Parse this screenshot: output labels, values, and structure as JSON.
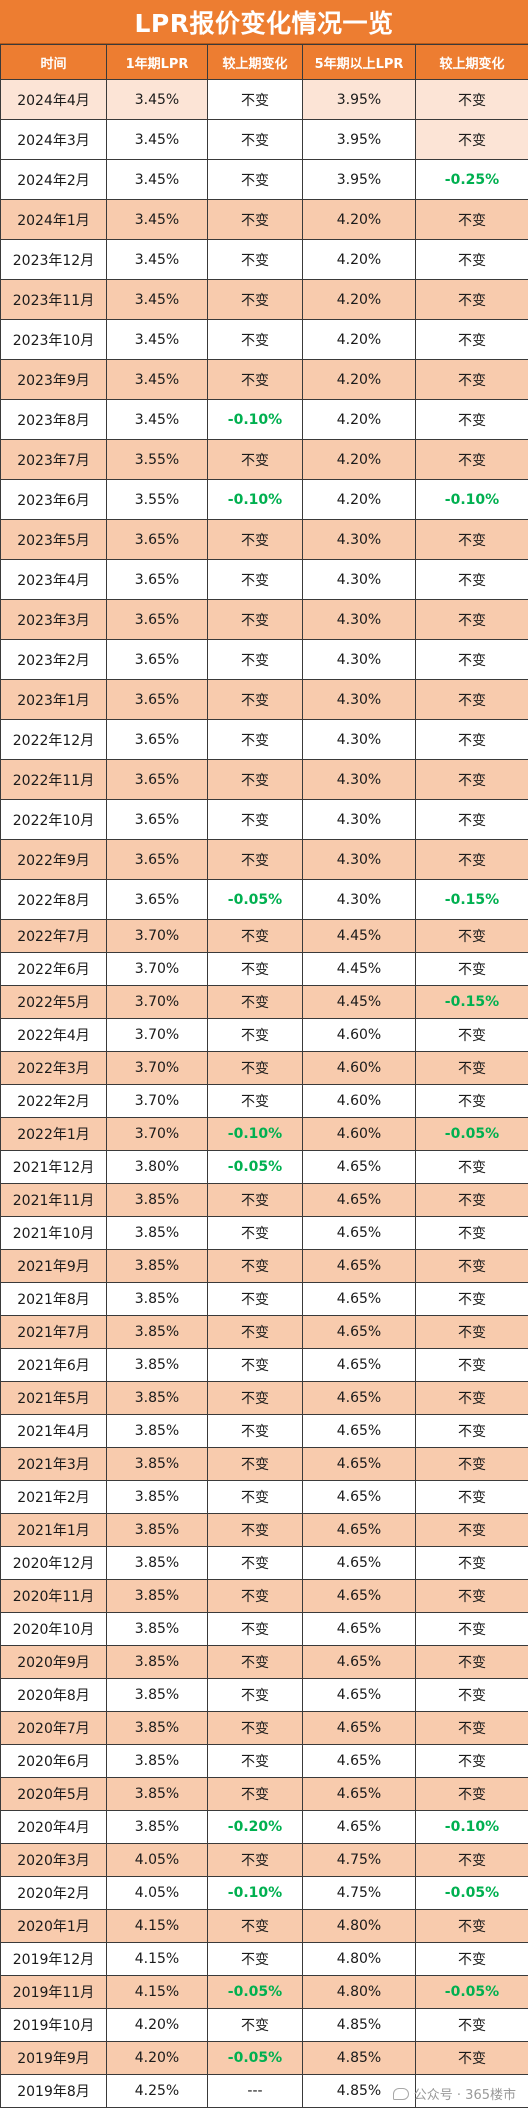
{
  "title": "LPR报价变化情况一览",
  "columns": [
    "时间",
    "1年期LPR",
    "较上期变化",
    "5年期以上LPR",
    "较上期变化"
  ],
  "rows": [
    {
      "date": "2024年4月",
      "lpr1": "3.45%",
      "chg1": "不变",
      "lpr5": "3.95%",
      "chg5": "不变"
    },
    {
      "date": "2024年3月",
      "lpr1": "3.45%",
      "chg1": "不变",
      "lpr5": "3.95%",
      "chg5": "不变"
    },
    {
      "date": "2024年2月",
      "lpr1": "3.45%",
      "chg1": "不变",
      "lpr5": "3.95%",
      "chg5": "-0.25%"
    },
    {
      "date": "2024年1月",
      "lpr1": "3.45%",
      "chg1": "不变",
      "lpr5": "4.20%",
      "chg5": "不变"
    },
    {
      "date": "2023年12月",
      "lpr1": "3.45%",
      "chg1": "不变",
      "lpr5": "4.20%",
      "chg5": "不变"
    },
    {
      "date": "2023年11月",
      "lpr1": "3.45%",
      "chg1": "不变",
      "lpr5": "4.20%",
      "chg5": "不变"
    },
    {
      "date": "2023年10月",
      "lpr1": "3.45%",
      "chg1": "不变",
      "lpr5": "4.20%",
      "chg5": "不变"
    },
    {
      "date": "2023年9月",
      "lpr1": "3.45%",
      "chg1": "不变",
      "lpr5": "4.20%",
      "chg5": "不变"
    },
    {
      "date": "2023年8月",
      "lpr1": "3.45%",
      "chg1": "-0.10%",
      "lpr5": "4.20%",
      "chg5": "不变"
    },
    {
      "date": "2023年7月",
      "lpr1": "3.55%",
      "chg1": "不变",
      "lpr5": "4.20%",
      "chg5": "不变"
    },
    {
      "date": "2023年6月",
      "lpr1": "3.55%",
      "chg1": "-0.10%",
      "lpr5": "4.20%",
      "chg5": "-0.10%"
    },
    {
      "date": "2023年5月",
      "lpr1": "3.65%",
      "chg1": "不变",
      "lpr5": "4.30%",
      "chg5": "不变"
    },
    {
      "date": "2023年4月",
      "lpr1": "3.65%",
      "chg1": "不变",
      "lpr5": "4.30%",
      "chg5": "不变"
    },
    {
      "date": "2023年3月",
      "lpr1": "3.65%",
      "chg1": "不变",
      "lpr5": "4.30%",
      "chg5": "不变"
    },
    {
      "date": "2023年2月",
      "lpr1": "3.65%",
      "chg1": "不变",
      "lpr5": "4.30%",
      "chg5": "不变"
    },
    {
      "date": "2023年1月",
      "lpr1": "3.65%",
      "chg1": "不变",
      "lpr5": "4.30%",
      "chg5": "不变"
    },
    {
      "date": "2022年12月",
      "lpr1": "3.65%",
      "chg1": "不变",
      "lpr5": "4.30%",
      "chg5": "不变"
    },
    {
      "date": "2022年11月",
      "lpr1": "3.65%",
      "chg1": "不变",
      "lpr5": "4.30%",
      "chg5": "不变"
    },
    {
      "date": "2022年10月",
      "lpr1": "3.65%",
      "chg1": "不变",
      "lpr5": "4.30%",
      "chg5": "不变"
    },
    {
      "date": "2022年9月",
      "lpr1": "3.65%",
      "chg1": "不变",
      "lpr5": "4.30%",
      "chg5": "不变"
    },
    {
      "date": "2022年8月",
      "lpr1": "3.65%",
      "chg1": "-0.05%",
      "lpr5": "4.30%",
      "chg5": "-0.15%"
    },
    {
      "date": "2022年7月",
      "lpr1": "3.70%",
      "chg1": "不变",
      "lpr5": "4.45%",
      "chg5": "不变"
    },
    {
      "date": "2022年6月",
      "lpr1": "3.70%",
      "chg1": "不变",
      "lpr5": "4.45%",
      "chg5": "不变"
    },
    {
      "date": "2022年5月",
      "lpr1": "3.70%",
      "chg1": "不变",
      "lpr5": "4.45%",
      "chg5": "-0.15%"
    },
    {
      "date": "2022年4月",
      "lpr1": "3.70%",
      "chg1": "不变",
      "lpr5": "4.60%",
      "chg5": "不变"
    },
    {
      "date": "2022年3月",
      "lpr1": "3.70%",
      "chg1": "不变",
      "lpr5": "4.60%",
      "chg5": "不变"
    },
    {
      "date": "2022年2月",
      "lpr1": "3.70%",
      "chg1": "不变",
      "lpr5": "4.60%",
      "chg5": "不变"
    },
    {
      "date": "2022年1月",
      "lpr1": "3.70%",
      "chg1": "-0.10%",
      "lpr5": "4.60%",
      "chg5": "-0.05%"
    },
    {
      "date": "2021年12月",
      "lpr1": "3.80%",
      "chg1": "-0.05%",
      "lpr5": "4.65%",
      "chg5": "不变"
    },
    {
      "date": "2021年11月",
      "lpr1": "3.85%",
      "chg1": "不变",
      "lpr5": "4.65%",
      "chg5": "不变"
    },
    {
      "date": "2021年10月",
      "lpr1": "3.85%",
      "chg1": "不变",
      "lpr5": "4.65%",
      "chg5": "不变"
    },
    {
      "date": "2021年9月",
      "lpr1": "3.85%",
      "chg1": "不变",
      "lpr5": "4.65%",
      "chg5": "不变"
    },
    {
      "date": "2021年8月",
      "lpr1": "3.85%",
      "chg1": "不变",
      "lpr5": "4.65%",
      "chg5": "不变"
    },
    {
      "date": "2021年7月",
      "lpr1": "3.85%",
      "chg1": "不变",
      "lpr5": "4.65%",
      "chg5": "不变"
    },
    {
      "date": "2021年6月",
      "lpr1": "3.85%",
      "chg1": "不变",
      "lpr5": "4.65%",
      "chg5": "不变"
    },
    {
      "date": "2021年5月",
      "lpr1": "3.85%",
      "chg1": "不变",
      "lpr5": "4.65%",
      "chg5": "不变"
    },
    {
      "date": "2021年4月",
      "lpr1": "3.85%",
      "chg1": "不变",
      "lpr5": "4.65%",
      "chg5": "不变"
    },
    {
      "date": "2021年3月",
      "lpr1": "3.85%",
      "chg1": "不变",
      "lpr5": "4.65%",
      "chg5": "不变"
    },
    {
      "date": "2021年2月",
      "lpr1": "3.85%",
      "chg1": "不变",
      "lpr5": "4.65%",
      "chg5": "不变"
    },
    {
      "date": "2021年1月",
      "lpr1": "3.85%",
      "chg1": "不变",
      "lpr5": "4.65%",
      "chg5": "不变"
    },
    {
      "date": "2020年12月",
      "lpr1": "3.85%",
      "chg1": "不变",
      "lpr5": "4.65%",
      "chg5": "不变"
    },
    {
      "date": "2020年11月",
      "lpr1": "3.85%",
      "chg1": "不变",
      "lpr5": "4.65%",
      "chg5": "不变"
    },
    {
      "date": "2020年10月",
      "lpr1": "3.85%",
      "chg1": "不变",
      "lpr5": "4.65%",
      "chg5": "不变"
    },
    {
      "date": "2020年9月",
      "lpr1": "3.85%",
      "chg1": "不变",
      "lpr5": "4.65%",
      "chg5": "不变"
    },
    {
      "date": "2020年8月",
      "lpr1": "3.85%",
      "chg1": "不变",
      "lpr5": "4.65%",
      "chg5": "不变"
    },
    {
      "date": "2020年7月",
      "lpr1": "3.85%",
      "chg1": "不变",
      "lpr5": "4.65%",
      "chg5": "不变"
    },
    {
      "date": "2020年6月",
      "lpr1": "3.85%",
      "chg1": "不变",
      "lpr5": "4.65%",
      "chg5": "不变"
    },
    {
      "date": "2020年5月",
      "lpr1": "3.85%",
      "chg1": "不变",
      "lpr5": "4.65%",
      "chg5": "不变"
    },
    {
      "date": "2020年4月",
      "lpr1": "3.85%",
      "chg1": "-0.20%",
      "lpr5": "4.65%",
      "chg5": "-0.10%"
    },
    {
      "date": "2020年3月",
      "lpr1": "4.05%",
      "chg1": "不变",
      "lpr5": "4.75%",
      "chg5": "不变"
    },
    {
      "date": "2020年2月",
      "lpr1": "4.05%",
      "chg1": "-0.10%",
      "lpr5": "4.75%",
      "chg5": "-0.05%"
    },
    {
      "date": "2020年1月",
      "lpr1": "4.15%",
      "chg1": "不变",
      "lpr5": "4.80%",
      "chg5": "不变"
    },
    {
      "date": "2019年12月",
      "lpr1": "4.15%",
      "chg1": "不变",
      "lpr5": "4.80%",
      "chg5": "不变"
    },
    {
      "date": "2019年11月",
      "lpr1": "4.15%",
      "chg1": "-0.05%",
      "lpr5": "4.80%",
      "chg5": "-0.05%"
    },
    {
      "date": "2019年10月",
      "lpr1": "4.20%",
      "chg1": "不变",
      "lpr5": "4.85%",
      "chg5": "不变"
    },
    {
      "date": "2019年9月",
      "lpr1": "4.20%",
      "chg1": "-0.05%",
      "lpr5": "4.85%",
      "chg5": "不变"
    },
    {
      "date": "2019年8月",
      "lpr1": "4.25%",
      "chg1": "---",
      "lpr5": "4.85%",
      "chg5": ""
    }
  ],
  "colors": {
    "header_bg": "#ED7D31",
    "band_bg": "#F8CBAD",
    "light_bg": "#FCE4D6",
    "decrease_text": "#00B050"
  },
  "watermark": {
    "icon": "wechat-icon",
    "text": "公众号 · 365楼市"
  }
}
